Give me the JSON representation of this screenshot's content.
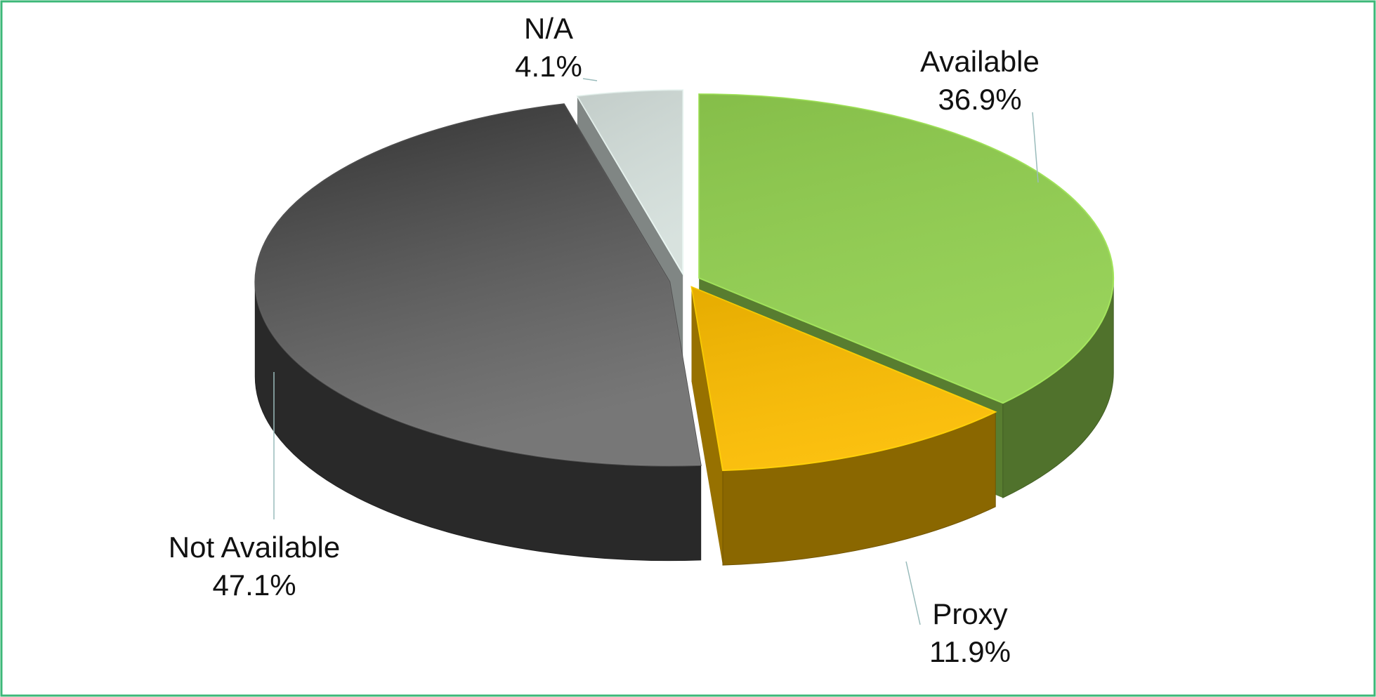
{
  "chart_data": {
    "type": "pie3d",
    "categories": [
      "Available",
      "Proxy",
      "Not Available",
      "N/A"
    ],
    "values": [
      36.9,
      11.9,
      47.1,
      4.1
    ],
    "value_labels": [
      "36.9%",
      "11.9%",
      "47.1%",
      "4.1%"
    ],
    "colors": [
      "#92d050",
      "#fbbc00",
      "#4a4a4a",
      "#d5e0dc"
    ]
  }
}
